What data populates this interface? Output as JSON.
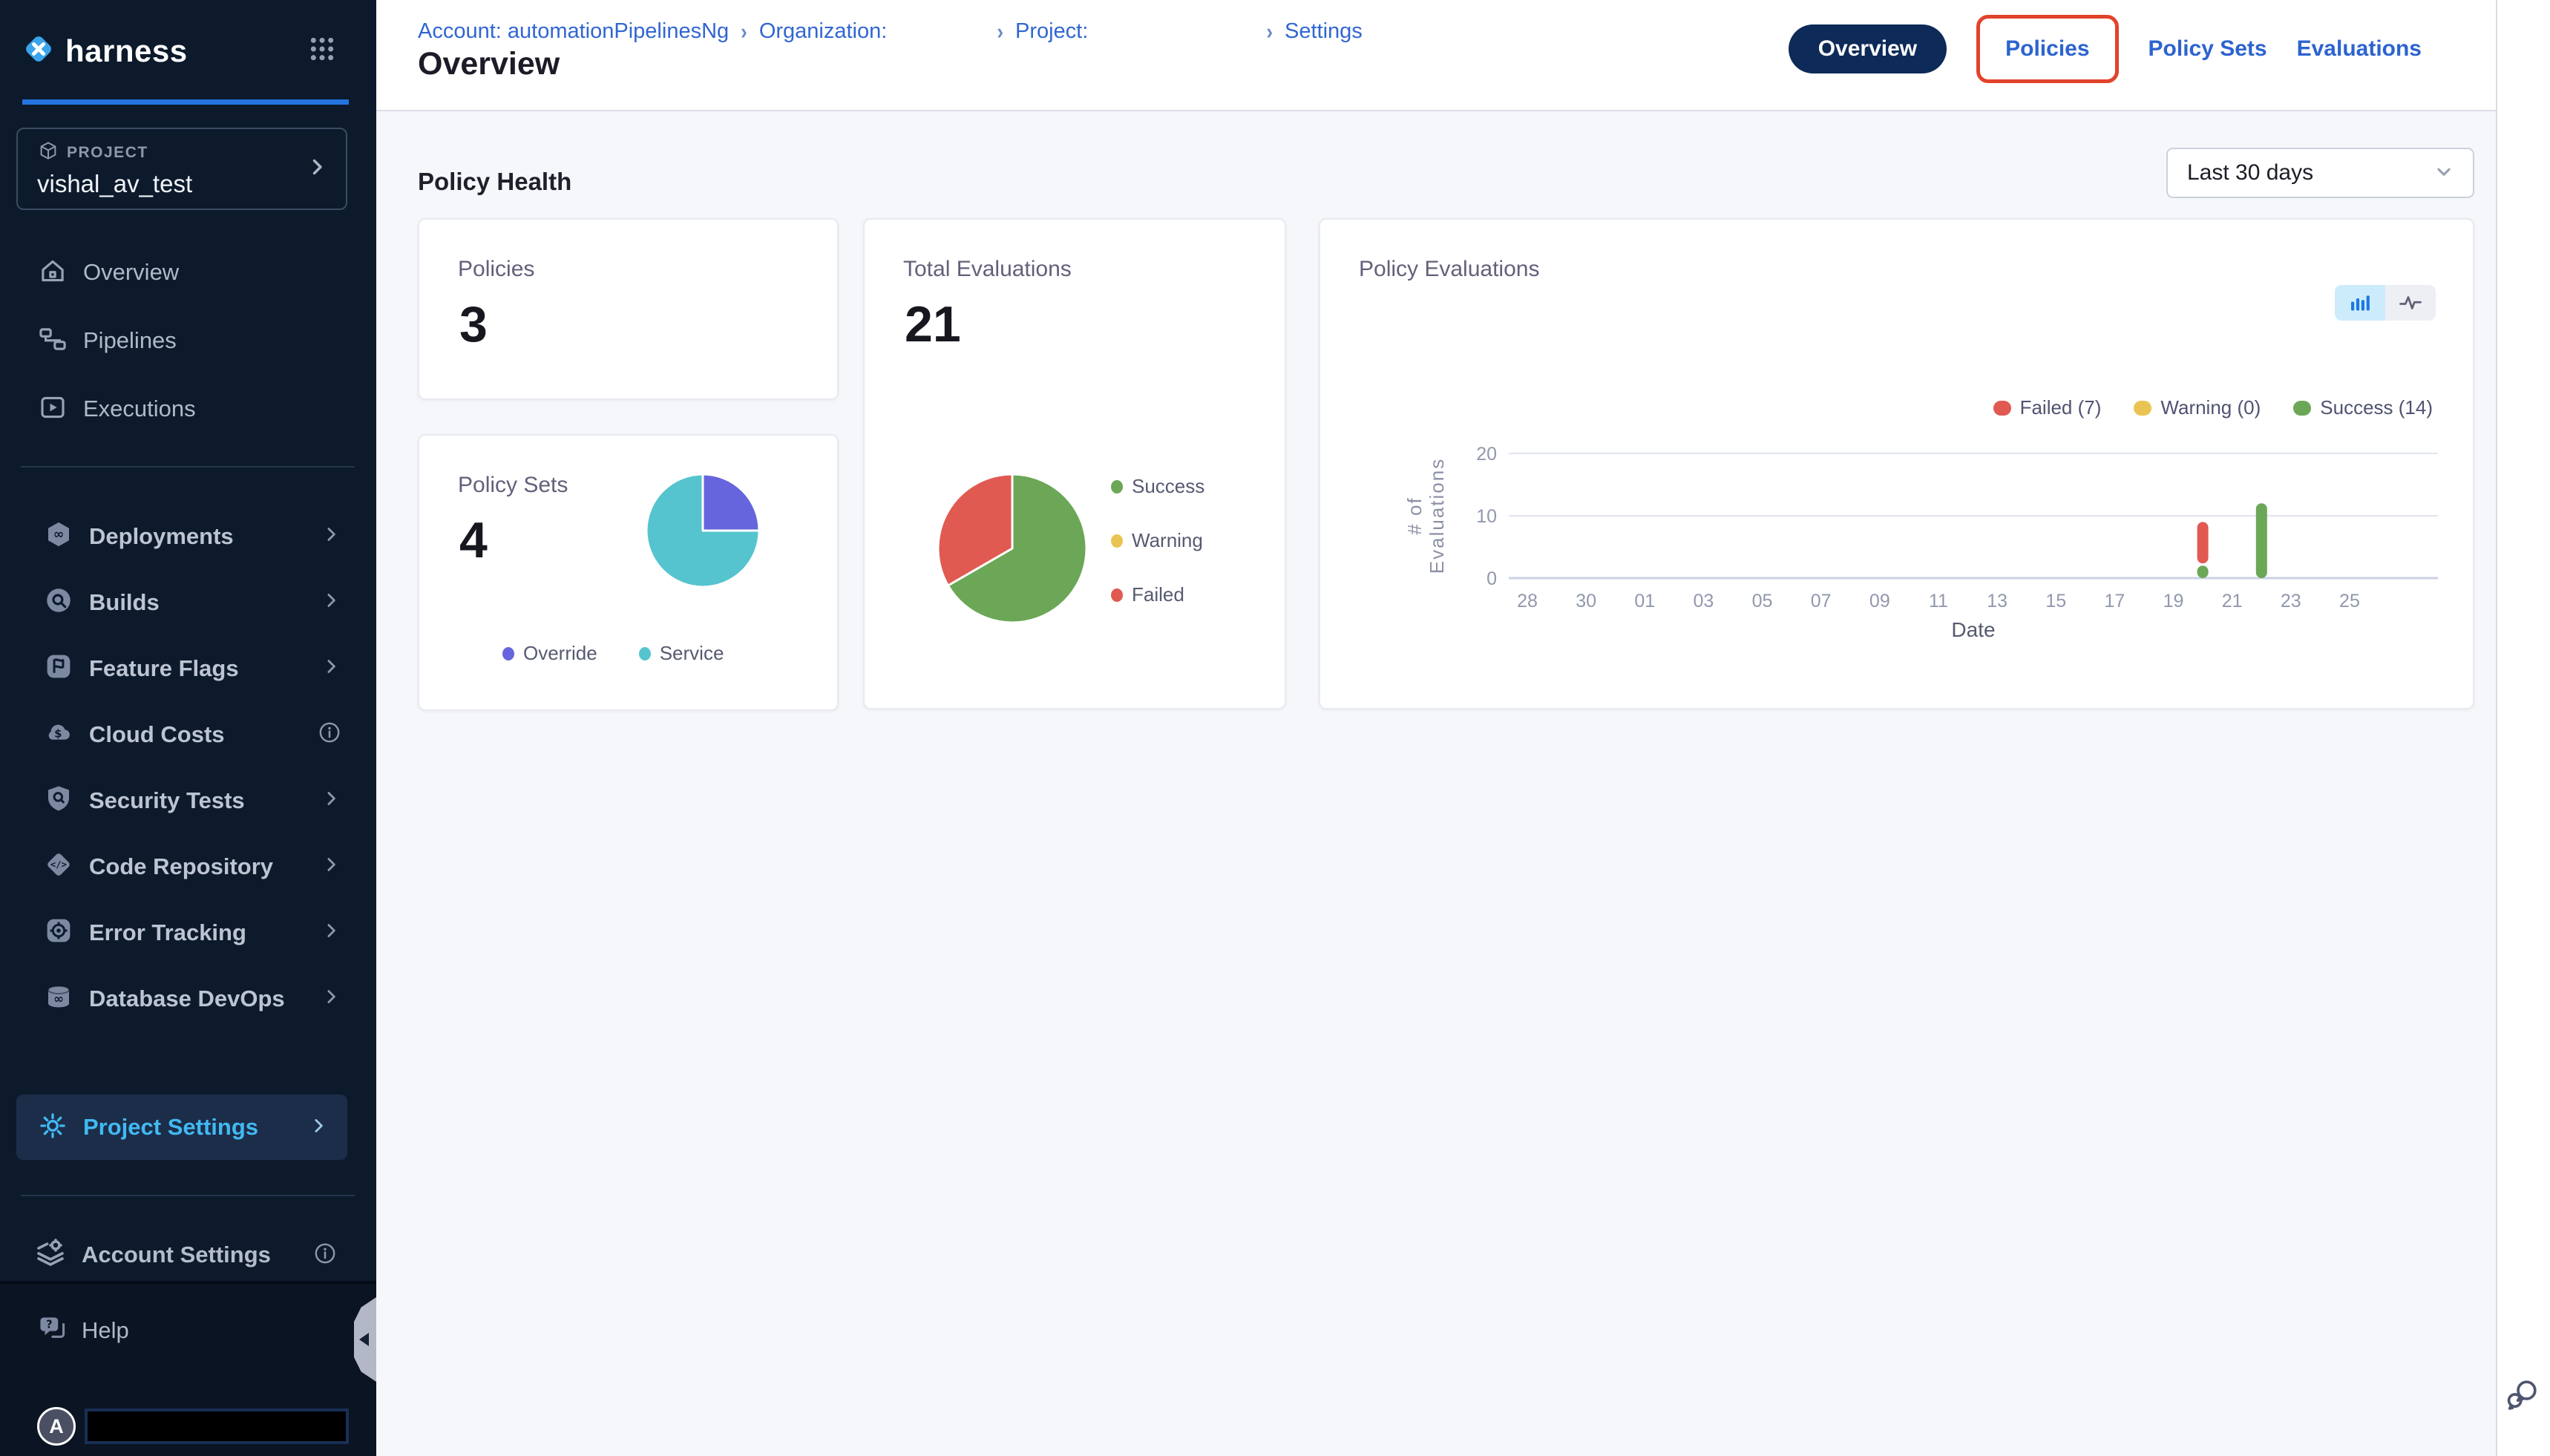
{
  "sidebar": {
    "logo": "harness",
    "project": {
      "label": "PROJECT",
      "name": "vishal_av_test"
    },
    "nav": [
      {
        "label": "Overview"
      },
      {
        "label": "Pipelines"
      },
      {
        "label": "Executions"
      }
    ],
    "modules": [
      {
        "label": "Deployments",
        "trailing": "chevron"
      },
      {
        "label": "Builds",
        "trailing": "chevron"
      },
      {
        "label": "Feature Flags",
        "trailing": "chevron"
      },
      {
        "label": "Cloud Costs",
        "trailing": "info"
      },
      {
        "label": "Security Tests",
        "trailing": "chevron"
      },
      {
        "label": "Code Repository",
        "trailing": "chevron"
      },
      {
        "label": "Error Tracking",
        "trailing": "chevron"
      },
      {
        "label": "Database DevOps",
        "trailing": "chevron"
      }
    ],
    "project_settings": {
      "label": "Project Settings"
    },
    "account_settings": {
      "label": "Account Settings"
    },
    "help": {
      "label": "Help"
    },
    "user": {
      "initial": "A"
    }
  },
  "header": {
    "breadcrumb": {
      "account": "Account: automationPipelinesNg",
      "organization": "Organization:",
      "project": "Project:",
      "settings": "Settings"
    },
    "title": "Overview",
    "tabs": [
      {
        "label": "Overview",
        "active": true
      },
      {
        "label": "Policies",
        "annotated": true
      },
      {
        "label": "Policy Sets"
      },
      {
        "label": "Evaluations"
      }
    ]
  },
  "main": {
    "section_title": "Policy Health",
    "date_filter": {
      "value": "Last 30 days"
    },
    "cards": {
      "policies": {
        "label": "Policies",
        "value": "3"
      },
      "total_evaluations": {
        "label": "Total Evaluations",
        "value": "21",
        "legend": [
          {
            "label": "Success",
            "color": "#6ba757"
          },
          {
            "label": "Warning",
            "color": "#e9c452"
          },
          {
            "label": "Failed",
            "color": "#e05a52"
          }
        ]
      },
      "policy_sets": {
        "label": "Policy Sets",
        "value": "4",
        "legend": [
          {
            "label": "Override",
            "color": "#6665dd"
          },
          {
            "label": "Service",
            "color": "#56c4ce"
          }
        ]
      },
      "policy_evaluations": {
        "label": "Policy Evaluations",
        "legend": [
          {
            "label": "Failed (7)",
            "color": "#e05a52"
          },
          {
            "label": "Warning (0)",
            "color": "#e9c452"
          },
          {
            "label": "Success (14)",
            "color": "#6ba757"
          }
        ]
      }
    }
  },
  "chart_data": [
    {
      "type": "pie",
      "title": "Policy Sets",
      "labels": [
        "Override",
        "Service"
      ],
      "values": [
        1,
        3
      ],
      "colors": [
        "#6665dd",
        "#56c4ce"
      ],
      "legend_position": "bottom"
    },
    {
      "type": "pie",
      "title": "Total Evaluations",
      "labels": [
        "Success",
        "Warning",
        "Failed"
      ],
      "values": [
        14,
        0,
        7
      ],
      "colors": [
        "#6ba757",
        "#e9c452",
        "#e05a52"
      ],
      "legend_position": "right"
    },
    {
      "type": "bar",
      "title": "Policy Evaluations",
      "xlabel": "Date",
      "ylabel": "# of Evaluations",
      "ylim": [
        0,
        20
      ],
      "y_ticks": [
        0,
        10,
        20
      ],
      "x_ticks": [
        "28",
        "30",
        "01",
        "03",
        "05",
        "07",
        "09",
        "11",
        "13",
        "15",
        "17",
        "19",
        "21",
        "23",
        "25"
      ],
      "grid": "horizontal",
      "legend_position": "top-right",
      "series": [
        {
          "name": "Failed",
          "total": 7,
          "color": "#e05a52"
        },
        {
          "name": "Warning",
          "total": 0,
          "color": "#e9c452"
        },
        {
          "name": "Success",
          "total": 14,
          "color": "#6ba757"
        }
      ],
      "bars": [
        {
          "date": "20",
          "tick_pos": 11.5,
          "segments": [
            {
              "series": "Success",
              "value": 2
            },
            {
              "series": "Failed",
              "value": 7
            }
          ]
        },
        {
          "date": "22",
          "tick_pos": 12.5,
          "segments": [
            {
              "series": "Success",
              "value": 12
            }
          ]
        }
      ]
    }
  ],
  "colors": {
    "sidebar_bg": "#0c1a2c",
    "accent_blue": "#2474e0",
    "link_blue": "#2c63cf",
    "active_pill_bg": "#0d2a58",
    "annotation_red": "#e2432d",
    "content_bg": "#f5f7fa"
  }
}
